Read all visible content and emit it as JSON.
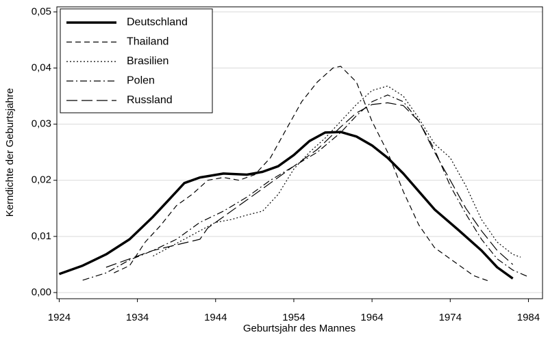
{
  "chart_data": {
    "type": "line",
    "xlabel": "Geburtsjahr des Mannes",
    "ylabel": "Kerndichte der Geburtsjahre",
    "xlim": [
      1923.7,
      1985.8
    ],
    "ylim": [
      -0.0011,
      0.0509
    ],
    "xticks": [
      1924,
      1934,
      1944,
      1954,
      1964,
      1974,
      1984
    ],
    "yticks": [
      {
        "value": 0,
        "label": "0,00"
      },
      {
        "value": 0.01,
        "label": "0,01"
      },
      {
        "value": 0.02,
        "label": "0,02"
      },
      {
        "value": 0.03,
        "label": "0,03"
      },
      {
        "value": 0.04,
        "label": "0,04"
      },
      {
        "value": 0.05,
        "label": "0,05"
      }
    ],
    "grid": true,
    "legend": "upper left",
    "series": [
      {
        "name": "Deutschland",
        "color": "#000000",
        "style": "solid",
        "line_width": 3.5,
        "x": [
          1924,
          1927,
          1930,
          1933,
          1936,
          1938,
          1940,
          1942,
          1945,
          1948,
          1950,
          1952,
          1954,
          1956,
          1958,
          1960,
          1962,
          1964,
          1966,
          1968,
          1970,
          1972,
          1975,
          1978,
          1980,
          1982
        ],
        "values": [
          0.0033,
          0.0048,
          0.0068,
          0.0095,
          0.0135,
          0.0165,
          0.0195,
          0.0205,
          0.0212,
          0.021,
          0.0215,
          0.0225,
          0.0245,
          0.027,
          0.0285,
          0.0286,
          0.0278,
          0.0262,
          0.024,
          0.0212,
          0.018,
          0.0148,
          0.0112,
          0.0075,
          0.0045,
          0.0025
        ]
      },
      {
        "name": "Thailand",
        "color": "#000000",
        "style": "dashed",
        "line_width": 1.2,
        "x": [
          1931,
          1933,
          1935,
          1937,
          1939,
          1941,
          1943,
          1945,
          1947,
          1949,
          1951,
          1953,
          1955,
          1957,
          1959,
          1960,
          1962,
          1964,
          1966,
          1968,
          1970,
          1972,
          1975,
          1977,
          1979
        ],
        "values": [
          0.0035,
          0.0048,
          0.009,
          0.012,
          0.0155,
          0.0175,
          0.02,
          0.0205,
          0.02,
          0.021,
          0.024,
          0.029,
          0.034,
          0.0375,
          0.04,
          0.0403,
          0.0375,
          0.0305,
          0.025,
          0.018,
          0.012,
          0.008,
          0.005,
          0.003,
          0.002
        ]
      },
      {
        "name": "Brasilien",
        "color": "#000000",
        "style": "dotted",
        "line_width": 1.2,
        "x": [
          1936,
          1938,
          1940,
          1942,
          1944,
          1946,
          1948,
          1950,
          1952,
          1954,
          1956,
          1958,
          1960,
          1962,
          1964,
          1966,
          1968,
          1970,
          1972,
          1974,
          1976,
          1978,
          1980,
          1982,
          1983
        ],
        "values": [
          0.0065,
          0.008,
          0.0095,
          0.011,
          0.0125,
          0.013,
          0.0138,
          0.0145,
          0.0175,
          0.022,
          0.025,
          0.0275,
          0.0305,
          0.0335,
          0.036,
          0.0368,
          0.035,
          0.031,
          0.0265,
          0.024,
          0.019,
          0.013,
          0.009,
          0.0068,
          0.0063
        ]
      },
      {
        "name": "Polen",
        "color": "#000000",
        "style": "dashdot",
        "line_width": 1.2,
        "x": [
          1927,
          1930,
          1933,
          1936,
          1939,
          1942,
          1945,
          1948,
          1951,
          1954,
          1957,
          1960,
          1962,
          1964,
          1966,
          1968,
          1970,
          1972,
          1974,
          1976,
          1978,
          1980,
          1982,
          1984
        ],
        "values": [
          0.0022,
          0.0035,
          0.0058,
          0.0075,
          0.0095,
          0.0125,
          0.0145,
          0.017,
          0.02,
          0.0225,
          0.025,
          0.0285,
          0.0315,
          0.034,
          0.0352,
          0.034,
          0.0305,
          0.0255,
          0.019,
          0.014,
          0.0095,
          0.006,
          0.004,
          0.0028
        ]
      },
      {
        "name": "Russland",
        "color": "#000000",
        "style": "longdash",
        "line_width": 1.2,
        "x": [
          1930,
          1933,
          1936,
          1939,
          1942,
          1943,
          1945,
          1948,
          1951,
          1954,
          1957,
          1960,
          1962,
          1964,
          1966,
          1968,
          1970,
          1972,
          1974,
          1976,
          1978,
          1980,
          1982
        ],
        "values": [
          0.0045,
          0.006,
          0.0075,
          0.0085,
          0.0095,
          0.0115,
          0.0135,
          0.0165,
          0.0195,
          0.0225,
          0.0255,
          0.0295,
          0.032,
          0.0335,
          0.0338,
          0.0333,
          0.0305,
          0.025,
          0.02,
          0.015,
          0.011,
          0.0075,
          0.005
        ]
      }
    ]
  }
}
